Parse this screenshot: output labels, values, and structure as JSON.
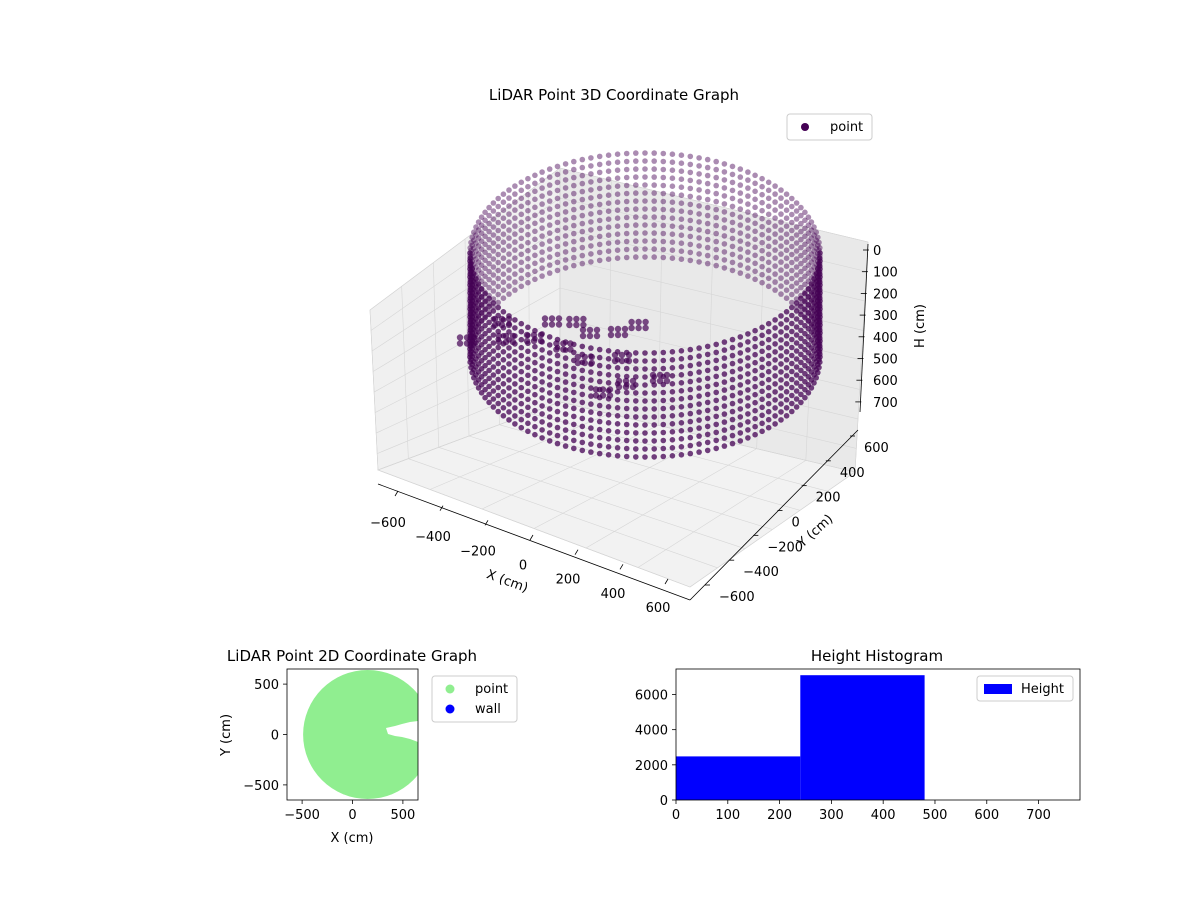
{
  "figure_background": "#ffffff",
  "chart_data": [
    {
      "type": "scatter",
      "projection": "3d",
      "title": "LiDAR Point 3D Coordinate Graph",
      "xlabel": "X (cm)",
      "ylabel": "Y (cm)",
      "zlabel": "H (cm)",
      "xlim": [
        -650,
        650
      ],
      "ylim": [
        -650,
        650
      ],
      "zlim": [
        0,
        780
      ],
      "z_inverted": true,
      "xticks": [
        "−600",
        "−400",
        "−200",
        "0",
        "200",
        "400",
        "600"
      ],
      "yticks": [
        "−600",
        "−400",
        "−200",
        "0",
        "200",
        "400",
        "600"
      ],
      "zticks": [
        "0",
        "100",
        "200",
        "300",
        "400",
        "500",
        "600",
        "700"
      ],
      "grid": true,
      "legend": {
        "placement": "upper-right",
        "entries": [
          {
            "label": "point",
            "color": "#440154"
          }
        ]
      },
      "point_color": "#440154",
      "wall": {
        "radius": 650,
        "z_min": 0,
        "z_max": 480,
        "columns": 120
      },
      "floor_cluster": [
        [
          -200,
          300,
          270
        ],
        [
          -100,
          320,
          220
        ],
        [
          0,
          250,
          200
        ],
        [
          100,
          300,
          180
        ],
        [
          150,
          380,
          150
        ],
        [
          -300,
          100,
          320
        ],
        [
          -200,
          150,
          300
        ],
        [
          -50,
          120,
          260
        ],
        [
          80,
          60,
          280
        ],
        [
          200,
          150,
          300
        ],
        [
          -400,
          250,
          380
        ],
        [
          -450,
          50,
          400
        ],
        [
          300,
          0,
          420
        ],
        [
          250,
          -100,
          440
        ],
        [
          400,
          100,
          400
        ]
      ]
    },
    {
      "type": "scatter",
      "title": "LiDAR Point 2D Coordinate Graph",
      "xlabel": "X (cm)",
      "ylabel": "Y (cm)",
      "xlim": [
        -650,
        650
      ],
      "ylim": [
        -650,
        650
      ],
      "xticks": [
        "−500",
        "0",
        "500"
      ],
      "yticks": [
        "500",
        "0",
        "−500"
      ],
      "legend": {
        "placement": "outside-right",
        "entries": [
          {
            "label": "point",
            "color": "#90ee90"
          },
          {
            "label": "wall",
            "color": "#0000ff"
          }
        ]
      },
      "point_region": {
        "shape": "disk",
        "center": [
          150,
          0
        ],
        "radius": 640
      }
    },
    {
      "type": "bar",
      "title": "Height Histogram",
      "xlim": [
        0,
        780
      ],
      "ylim": [
        0,
        7450
      ],
      "xticks": [
        "0",
        "100",
        "200",
        "300",
        "400",
        "500",
        "600",
        "700"
      ],
      "yticks": [
        "0",
        "2000",
        "4000",
        "6000"
      ],
      "bins": [
        {
          "x0": 0,
          "x1": 240,
          "count": 2480
        },
        {
          "x0": 240,
          "x1": 480,
          "count": 7100
        }
      ],
      "color": "#0000ff",
      "legend": {
        "placement": "upper-right",
        "entries": [
          {
            "label": "Height",
            "color": "#0000ff"
          }
        ]
      }
    }
  ]
}
